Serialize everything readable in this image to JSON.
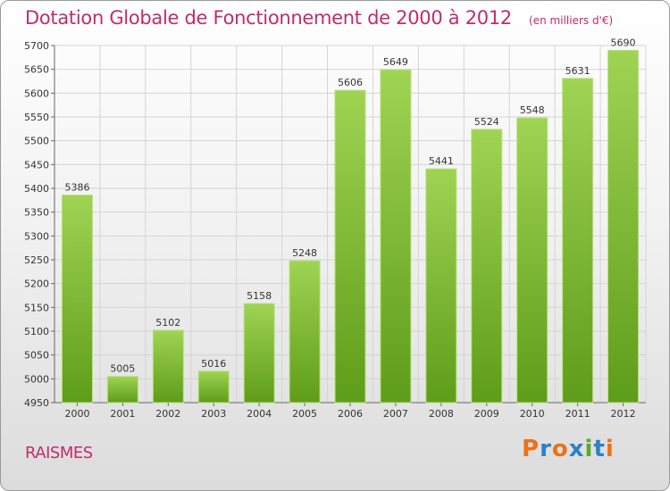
{
  "header": {
    "title": "Dotation Globale de Fonctionnement de 2000 à 2012",
    "subtitle": "(en milliers d'€)"
  },
  "footer": {
    "commune": "RAISMES",
    "logo_text": "Proxiti",
    "logo_colors": [
      "#e8731a",
      "#2f80c8",
      "#e8731a",
      "#2f80c8",
      "#5aa82a",
      "#2f80c8",
      "#e8731a"
    ]
  },
  "chart_data": {
    "type": "bar",
    "categories": [
      "2000",
      "2001",
      "2002",
      "2003",
      "2004",
      "2005",
      "2006",
      "2007",
      "2008",
      "2009",
      "2010",
      "2011",
      "2012"
    ],
    "values": [
      5386,
      5005,
      5102,
      5016,
      5158,
      5248,
      5606,
      5649,
      5441,
      5524,
      5548,
      5631,
      5690
    ],
    "ylim": [
      4950,
      5700
    ],
    "yticks": [
      4950,
      5000,
      5050,
      5100,
      5150,
      5200,
      5250,
      5300,
      5350,
      5400,
      5450,
      5500,
      5550,
      5600,
      5650,
      5700
    ],
    "grid": true,
    "bar_color": "#7dc034",
    "bar_color_light": "#9fd453",
    "bar_color_dark": "#5e9d19",
    "xlabel": "",
    "ylabel": ""
  }
}
